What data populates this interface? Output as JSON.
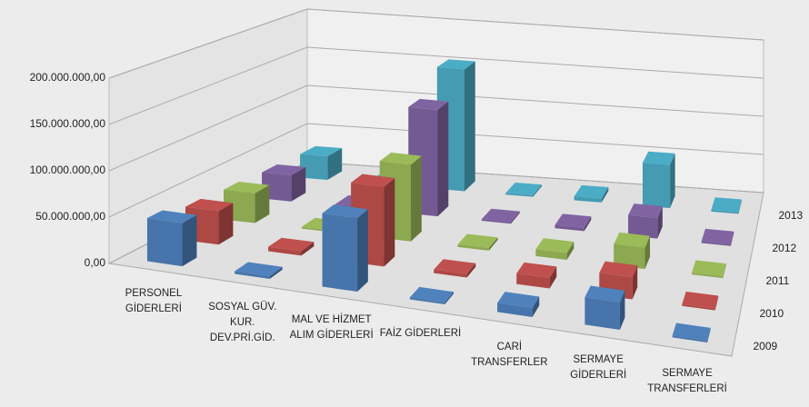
{
  "chart_data": {
    "type": "bar3d",
    "categories": [
      "PERSONEL GİDERLERİ",
      "SOSYAL GÜV. KUR. DEV.PRİ.GİD.",
      "MAL VE HİZMET ALIM GİDERLERİ",
      "FAİZ GİDERLERİ",
      "CARİ TRANSFERLER",
      "SERMAYE GİDERLERİ",
      "SERMAYE TRANSFERLERİ"
    ],
    "series": [
      {
        "name": "2009",
        "color": "#4f81bd",
        "values": [
          47000000,
          3000000,
          80000000,
          2000000,
          10000000,
          30000000,
          2000000
        ]
      },
      {
        "name": "2010",
        "color": "#c0504d",
        "values": [
          38000000,
          5000000,
          90000000,
          4000000,
          12000000,
          25000000,
          2000000
        ]
      },
      {
        "name": "2011",
        "color": "#9bbb59",
        "values": [
          35000000,
          2000000,
          90000000,
          3000000,
          8000000,
          25000000,
          2000000
        ]
      },
      {
        "name": "2012",
        "color": "#8064a2",
        "values": [
          32000000,
          2000000,
          130000000,
          2000000,
          4000000,
          25000000,
          2000000
        ]
      },
      {
        "name": "2013",
        "color": "#4bacc6",
        "values": [
          30000000,
          2000000,
          155000000,
          2000000,
          5000000,
          55000000,
          2000000
        ]
      }
    ],
    "ylim": [
      0,
      200000000
    ],
    "yticks": [
      {
        "value": 0,
        "label": "0,00"
      },
      {
        "value": 50000000,
        "label": "50.000.000,00"
      },
      {
        "value": 100000000,
        "label": "100.000.000,00"
      },
      {
        "value": 150000000,
        "label": "150.000.000,00"
      },
      {
        "value": 200000000,
        "label": "200.000.000,00"
      }
    ],
    "grid": true
  }
}
